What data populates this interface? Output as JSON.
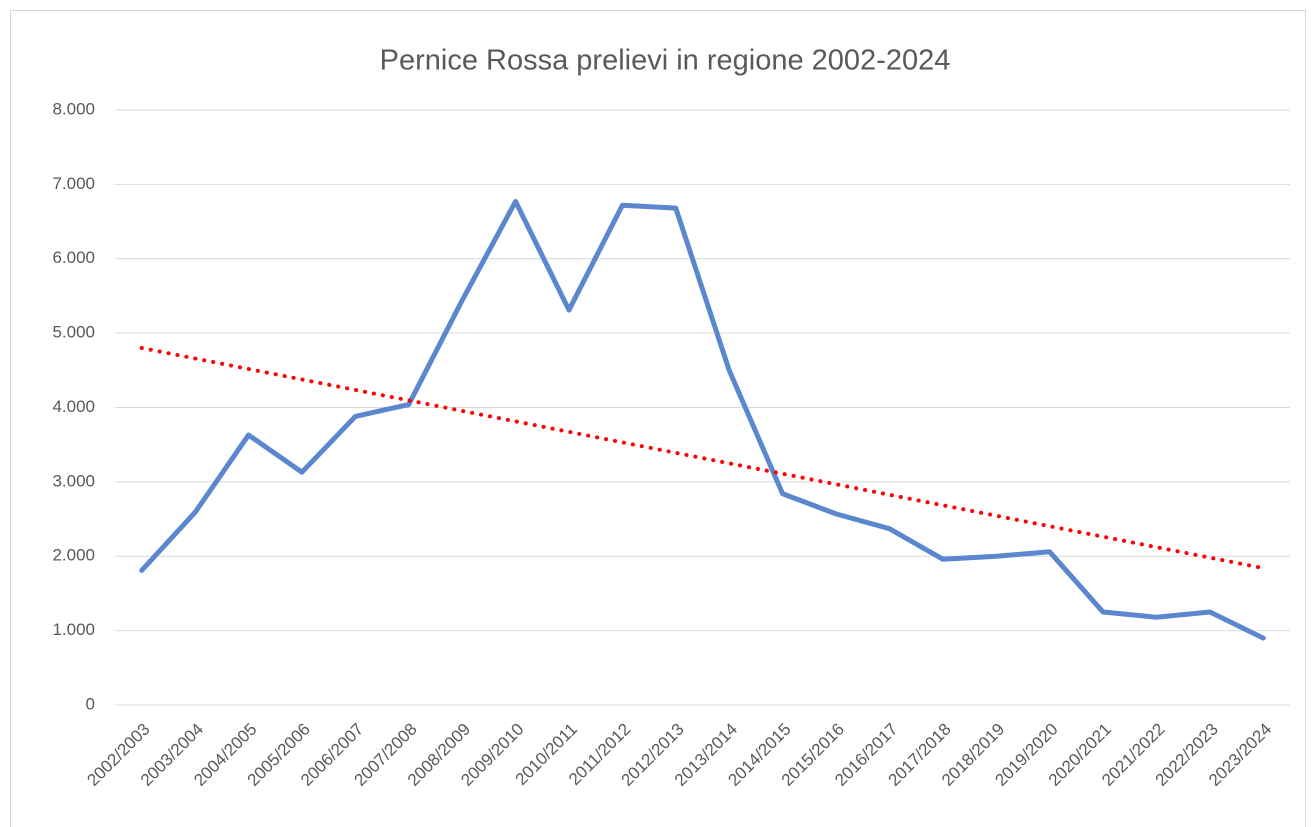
{
  "chart_data": {
    "type": "line",
    "title": "Pernice Rossa prelievi in regione 2002-2024",
    "categories": [
      "2002/2003",
      "2003/2004",
      "2004/2005",
      "2005/2006",
      "2006/2007",
      "2007/2008",
      "2008/2009",
      "2009/2010",
      "2010/2011",
      "2011/2012",
      "2012/2013",
      "2013/2014",
      "2014/2015",
      "2015/2016",
      "2016/2017",
      "2017/2018",
      "2018/2019",
      "2019/2020",
      "2020/2021",
      "2021/2022",
      "2022/2023",
      "2023/2024"
    ],
    "series": [
      {
        "color": "#5b87cf",
        "values": [
          1810,
          2590,
          3630,
          3130,
          3880,
          4040,
          5440,
          6770,
          5310,
          6720,
          6680,
          4500,
          2840,
          2570,
          2370,
          1960,
          2000,
          2060,
          1250,
          1180,
          1250,
          900
        ]
      }
    ],
    "trendline": {
      "type": "linear",
      "style": "dotted",
      "color": "#ff0000",
      "start": 4800,
      "end": 1840
    },
    "ylim": [
      0,
      8000
    ],
    "yticks": [
      0,
      {
        "value": 1000,
        "label": "1.000"
      },
      {
        "value": 2000,
        "label": "2.000"
      },
      {
        "value": 3000,
        "label": "3.000"
      },
      {
        "value": 4000,
        "label": "4.000"
      },
      {
        "value": 5000,
        "label": "5.000"
      },
      {
        "value": 6000,
        "label": "6.000"
      },
      {
        "value": 7000,
        "label": "7.000"
      },
      {
        "value": 8000,
        "label": "8.000"
      }
    ],
    "grid": true
  }
}
